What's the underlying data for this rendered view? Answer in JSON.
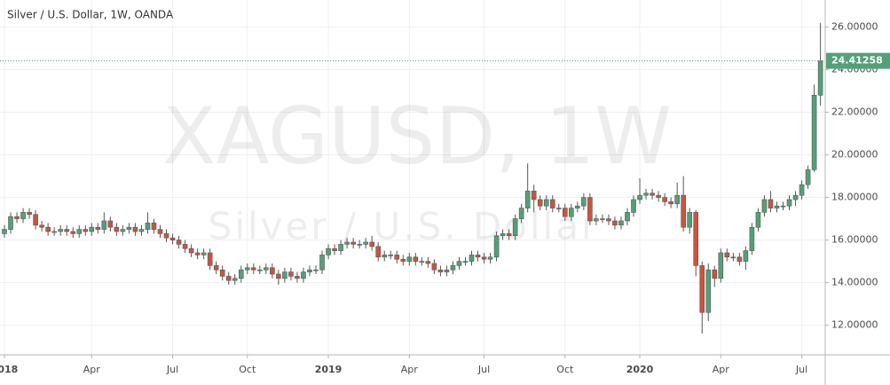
{
  "chart_data": {
    "type": "candlestick",
    "title": "Silver / U.S. Dollar, 1W, OANDA",
    "watermark": "XAGUSD, 1W",
    "watermark_subtitle": "Silver / U.S. Dollar",
    "categories": [
      "2018",
      null,
      null,
      null,
      null,
      null,
      null,
      null,
      null,
      null,
      null,
      null,
      null,
      null,
      "Apr",
      null,
      null,
      null,
      null,
      null,
      null,
      null,
      null,
      null,
      null,
      null,
      null,
      "Jul",
      null,
      null,
      null,
      null,
      null,
      null,
      null,
      null,
      null,
      null,
      null,
      "Oct",
      null,
      null,
      null,
      null,
      null,
      null,
      null,
      null,
      null,
      null,
      null,
      null,
      "2019",
      null,
      null,
      null,
      null,
      null,
      null,
      null,
      null,
      null,
      null,
      null,
      null,
      "Apr",
      null,
      null,
      null,
      null,
      null,
      null,
      null,
      null,
      null,
      null,
      null,
      "Jul",
      null,
      null,
      null,
      null,
      null,
      null,
      null,
      null,
      null,
      null,
      null,
      null,
      "Oct",
      null,
      null,
      null,
      null,
      null,
      null,
      null,
      null,
      null,
      null,
      null,
      "2020",
      null,
      null,
      null,
      null,
      null,
      null,
      null,
      null,
      null,
      null,
      null,
      null,
      "Apr",
      null,
      null,
      null,
      null,
      null,
      null,
      null,
      null,
      null,
      null,
      null,
      null,
      "Jul",
      null,
      null,
      null
    ],
    "open": [
      16.3,
      16.5,
      17.1,
      17.0,
      17.3,
      17.2,
      16.7,
      16.6,
      16.4,
      16.4,
      16.5,
      16.4,
      16.3,
      16.5,
      16.4,
      16.6,
      16.5,
      16.9,
      16.6,
      16.4,
      16.5,
      16.6,
      16.4,
      16.5,
      16.8,
      16.5,
      16.3,
      16.1,
      16.0,
      15.8,
      15.6,
      15.4,
      15.3,
      15.4,
      14.8,
      14.6,
      14.3,
      14.1,
      14.2,
      14.6,
      14.7,
      14.6,
      14.6,
      14.7,
      14.4,
      14.2,
      14.5,
      14.3,
      14.2,
      14.5,
      14.6,
      14.6,
      15.3,
      15.6,
      15.5,
      15.8,
      15.9,
      15.8,
      15.8,
      15.9,
      15.7,
      15.2,
      15.3,
      15.3,
      15.1,
      15.0,
      15.2,
      15.0,
      15.0,
      14.9,
      14.6,
      14.5,
      14.6,
      14.8,
      15.0,
      15.0,
      15.3,
      15.2,
      15.1,
      15.2,
      16.2,
      16.3,
      16.2,
      17.0,
      17.5,
      18.3,
      17.9,
      17.6,
      17.9,
      17.5,
      17.5,
      17.1,
      17.5,
      17.6,
      18.0,
      16.9,
      17.0,
      17.0,
      16.9,
      16.7,
      16.9,
      17.3,
      17.9,
      18.1,
      18.2,
      18.1,
      18.0,
      17.8,
      17.7,
      18.1,
      16.6,
      17.3,
      14.8,
      12.6,
      14.6,
      14.2,
      15.4,
      15.2,
      15.2,
      15.0,
      15.5,
      16.6,
      17.3,
      17.9,
      17.5,
      17.6,
      17.6,
      17.9,
      18.1,
      18.6,
      19.3,
      22.8
    ],
    "high": [
      16.7,
      17.3,
      17.3,
      17.5,
      17.5,
      17.4,
      16.9,
      16.8,
      16.6,
      16.7,
      16.7,
      16.6,
      16.7,
      16.7,
      16.8,
      16.8,
      17.3,
      17.1,
      16.8,
      16.7,
      16.8,
      16.8,
      16.7,
      17.3,
      17.0,
      16.7,
      16.5,
      16.3,
      16.2,
      16.0,
      15.8,
      15.6,
      15.6,
      15.6,
      15.0,
      14.8,
      14.5,
      14.4,
      14.8,
      14.9,
      14.9,
      14.8,
      14.9,
      14.9,
      14.6,
      14.7,
      14.7,
      14.5,
      14.7,
      14.8,
      14.8,
      15.5,
      15.8,
      15.8,
      16.0,
      16.1,
      16.1,
      16.0,
      16.1,
      16.2,
      15.9,
      15.5,
      15.5,
      15.5,
      15.3,
      15.4,
      15.4,
      15.2,
      15.2,
      15.1,
      14.8,
      14.8,
      15.0,
      15.2,
      15.2,
      15.5,
      15.5,
      15.4,
      15.4,
      16.4,
      16.5,
      16.5,
      17.2,
      17.7,
      19.6,
      18.6,
      18.1,
      18.1,
      18.1,
      17.7,
      17.7,
      17.7,
      17.8,
      18.2,
      18.2,
      17.2,
      17.2,
      17.2,
      17.1,
      17.1,
      17.5,
      18.1,
      18.9,
      18.4,
      18.4,
      18.3,
      18.2,
      18.0,
      18.7,
      19.0,
      17.5,
      17.4,
      15.0,
      14.9,
      14.8,
      15.6,
      15.6,
      15.4,
      15.4,
      15.7,
      16.8,
      17.5,
      18.1,
      18.3,
      17.8,
      17.8,
      18.1,
      18.3,
      18.8,
      19.5,
      23.3,
      26.2
    ],
    "low": [
      16.1,
      16.3,
      16.8,
      16.8,
      17.0,
      16.5,
      16.4,
      16.2,
      16.2,
      16.2,
      16.2,
      16.1,
      16.1,
      16.2,
      16.2,
      16.3,
      16.3,
      16.4,
      16.2,
      16.2,
      16.3,
      16.2,
      16.2,
      16.3,
      16.3,
      16.1,
      15.9,
      15.8,
      15.6,
      15.4,
      15.2,
      15.1,
      15.1,
      14.6,
      14.4,
      14.1,
      13.9,
      13.9,
      14.0,
      14.4,
      14.4,
      14.4,
      14.4,
      14.2,
      13.9,
      14.0,
      14.1,
      14.0,
      14.0,
      14.3,
      14.4,
      14.4,
      15.1,
      15.3,
      15.3,
      15.6,
      15.6,
      15.6,
      15.6,
      15.5,
      15.0,
      15.0,
      15.1,
      14.9,
      14.8,
      14.8,
      14.8,
      14.8,
      14.7,
      14.4,
      14.3,
      14.3,
      14.4,
      14.6,
      14.8,
      14.8,
      15.0,
      14.9,
      14.9,
      15.0,
      16.0,
      16.0,
      16.0,
      16.8,
      17.3,
      17.3,
      17.4,
      17.4,
      17.3,
      17.3,
      16.9,
      16.9,
      17.3,
      17.4,
      16.7,
      16.7,
      16.8,
      16.7,
      16.5,
      16.5,
      16.7,
      17.1,
      17.7,
      17.9,
      17.9,
      17.8,
      17.6,
      17.5,
      17.5,
      16.4,
      16.3,
      14.3,
      11.6,
      12.2,
      13.8,
      14.0,
      15.0,
      15.0,
      14.8,
      14.6,
      15.3,
      16.4,
      17.1,
      17.3,
      17.3,
      17.4,
      17.4,
      17.6,
      17.9,
      18.4,
      19.2,
      22.3
    ],
    "close": [
      16.5,
      17.1,
      17.0,
      17.3,
      17.2,
      16.7,
      16.6,
      16.4,
      16.4,
      16.5,
      16.4,
      16.3,
      16.5,
      16.4,
      16.6,
      16.5,
      16.9,
      16.6,
      16.4,
      16.5,
      16.6,
      16.4,
      16.5,
      16.8,
      16.5,
      16.3,
      16.1,
      16.0,
      15.8,
      15.6,
      15.4,
      15.3,
      15.4,
      14.8,
      14.6,
      14.3,
      14.1,
      14.2,
      14.6,
      14.7,
      14.6,
      14.6,
      14.7,
      14.4,
      14.2,
      14.5,
      14.3,
      14.2,
      14.5,
      14.6,
      14.6,
      15.3,
      15.6,
      15.5,
      15.8,
      15.9,
      15.8,
      15.8,
      15.9,
      15.7,
      15.2,
      15.3,
      15.3,
      15.1,
      15.0,
      15.2,
      15.0,
      15.0,
      14.9,
      14.6,
      14.5,
      14.6,
      14.8,
      15.0,
      15.0,
      15.3,
      15.2,
      15.1,
      15.2,
      16.2,
      16.3,
      16.2,
      17.0,
      17.5,
      18.3,
      17.9,
      17.6,
      17.9,
      17.5,
      17.5,
      17.1,
      17.5,
      17.6,
      18.0,
      16.9,
      17.0,
      17.0,
      16.9,
      16.7,
      16.9,
      17.3,
      17.9,
      18.1,
      18.2,
      18.1,
      18.0,
      17.8,
      17.7,
      18.1,
      16.6,
      17.3,
      14.8,
      12.6,
      14.6,
      14.2,
      15.4,
      15.2,
      15.2,
      15.0,
      15.5,
      16.6,
      17.3,
      17.9,
      17.5,
      17.6,
      17.6,
      17.9,
      18.1,
      18.6,
      19.3,
      22.8,
      24.41258
    ],
    "up_color": "#53a079",
    "down_color": "#c9553f",
    "ylim": [
      10.61,
      27.27
    ],
    "yticks": [
      {
        "value": 12,
        "label": "12.00000"
      },
      {
        "value": 14,
        "label": "14.00000"
      },
      {
        "value": 16,
        "label": "16.00000"
      },
      {
        "value": 18,
        "label": "18.00000"
      },
      {
        "value": 20,
        "label": "20.00000"
      },
      {
        "value": 22,
        "label": "22.00000"
      },
      {
        "value": 24,
        "label": "24.00000"
      },
      {
        "value": 26,
        "label": "26.00000"
      }
    ],
    "grid": true
  }
}
